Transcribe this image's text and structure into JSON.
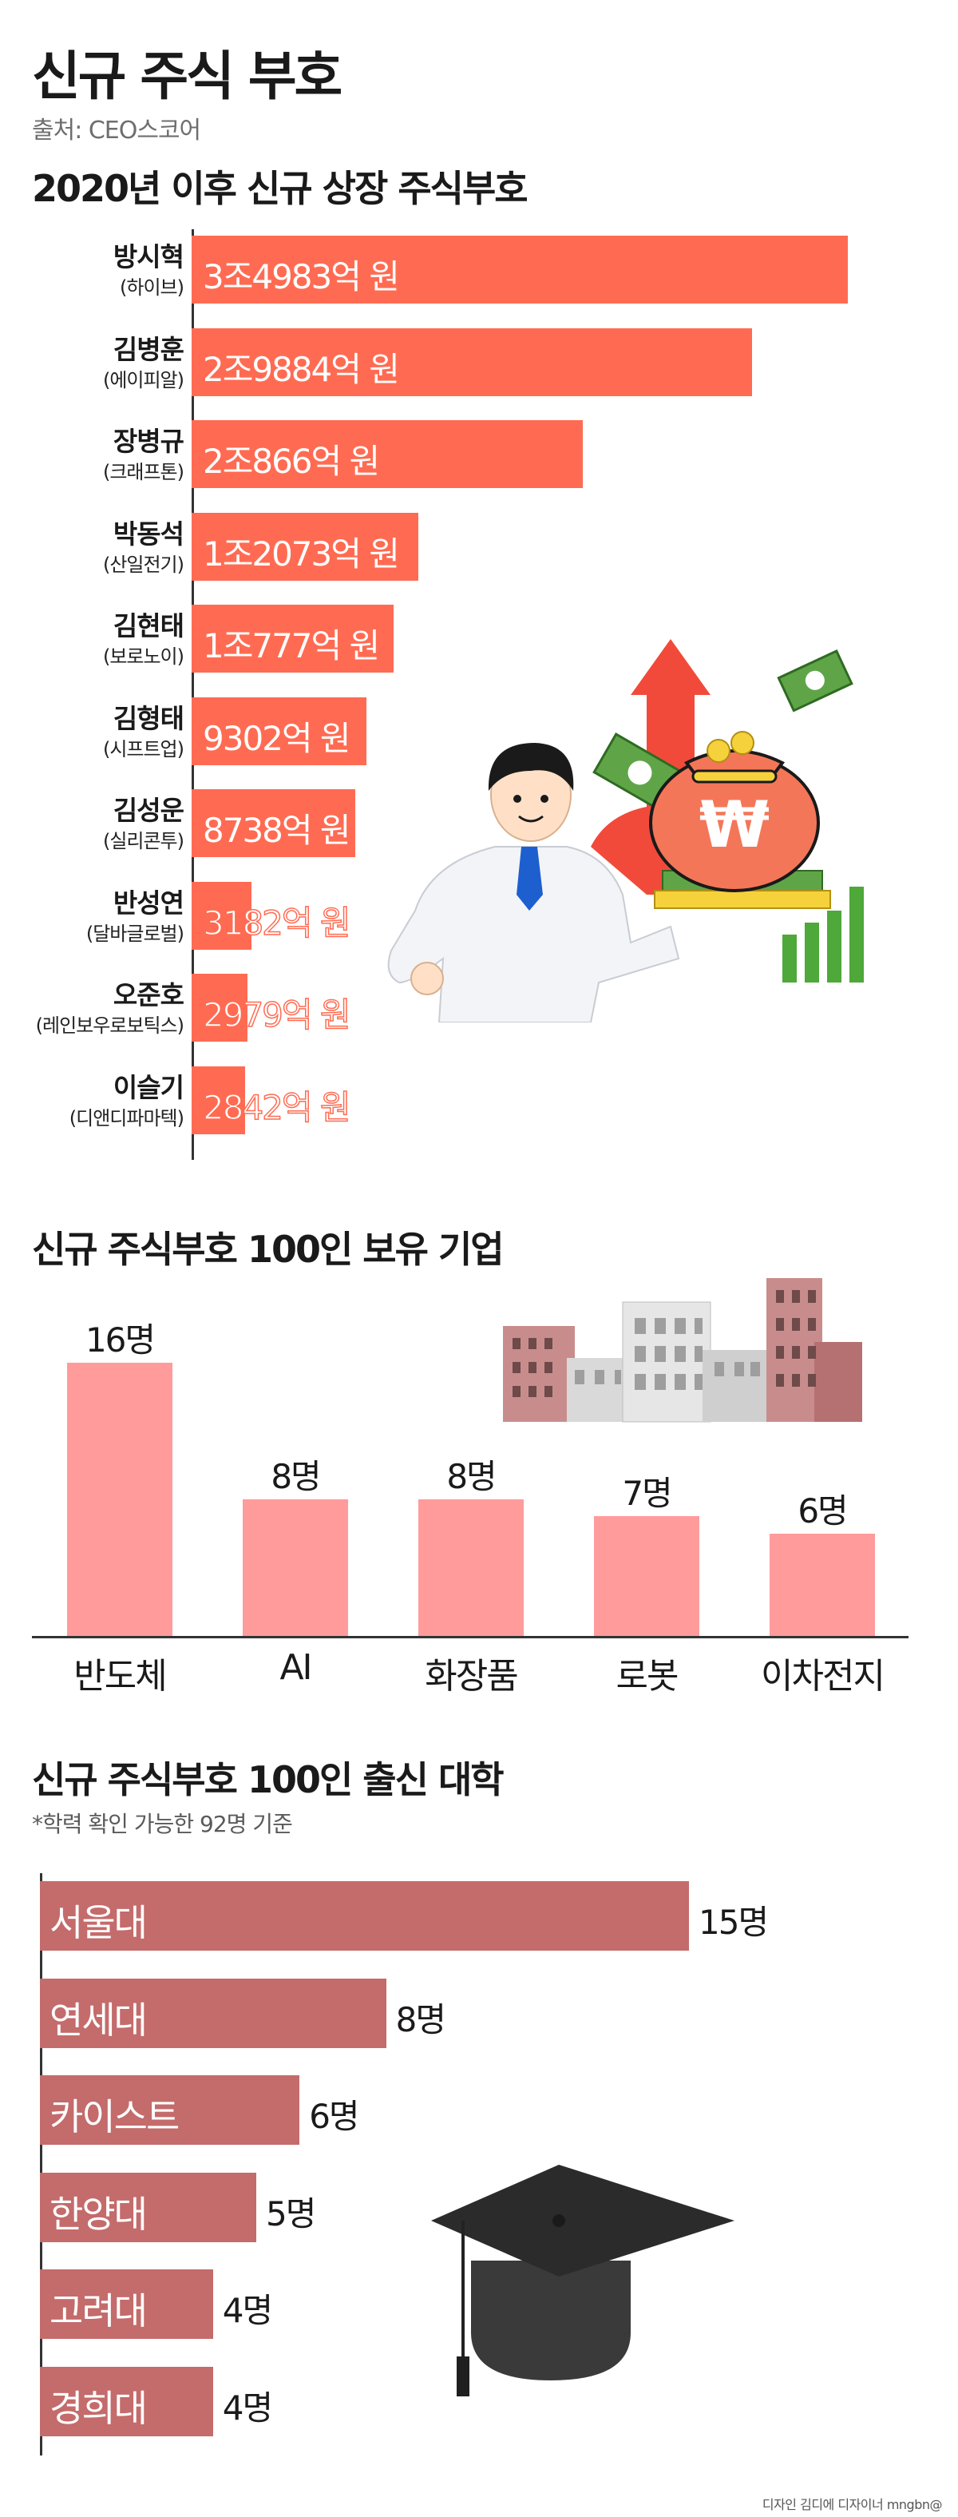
{
  "header": {
    "title": "신규 주식 부호",
    "source": "출처: CEO스코어"
  },
  "colors": {
    "bar1": "#ff6b52",
    "bar2": "#ff9b9b",
    "bar3": "#c46b6b",
    "axis": "#333333"
  },
  "chart_data": [
    {
      "type": "bar",
      "orientation": "horizontal",
      "title": "2020년 이후 신규 상장 주식부호",
      "categories": [
        "방시혁",
        "김병훈",
        "장병규",
        "박동석",
        "김현태",
        "김형태",
        "김성운",
        "반성연",
        "오준호",
        "이슬기"
      ],
      "companies": [
        "(하이브)",
        "(에이피알)",
        "(크래프톤)",
        "(산일전기)",
        "(보로노이)",
        "(시프트업)",
        "(실리콘투)",
        "(달바글로벌)",
        "(레인보우로보틱스)",
        "(디앤디파마텍)"
      ],
      "values": [
        34983,
        29884,
        20866,
        12073,
        10777,
        9302,
        8738,
        3182,
        2979,
        2842
      ],
      "value_labels": [
        "3조4983억 원",
        "2조9884억 원",
        "2조866억 원",
        "1조2073억 원",
        "1조777억 원",
        "9302억 원",
        "8738억 원",
        "3182억 원",
        "2979억 원",
        "2842억 원"
      ],
      "unit": "억 원"
    },
    {
      "type": "bar",
      "orientation": "vertical",
      "title": "신규 주식부호 100인 보유 기업",
      "categories": [
        "반도체",
        "AI",
        "화장품",
        "로봇",
        "이차전지"
      ],
      "values": [
        16,
        8,
        8,
        7,
        6
      ],
      "value_labels": [
        "16명",
        "8명",
        "8명",
        "7명",
        "6명"
      ],
      "unit": "명"
    },
    {
      "type": "bar",
      "orientation": "horizontal",
      "title": "신규 주식부호 100인 출신 대학",
      "note": "*학력 확인 가능한 92명 기준",
      "categories": [
        "서울대",
        "연세대",
        "카이스트",
        "한양대",
        "고려대",
        "경희대"
      ],
      "values": [
        15,
        8,
        6,
        5,
        4,
        4
      ],
      "value_labels": [
        "15명",
        "8명",
        "6명",
        "5명",
        "4명",
        "4명"
      ],
      "unit": "명"
    }
  ],
  "icons": {
    "illustration_1": "businessman-money-bag-icon",
    "illustration_2": "city-buildings-icon",
    "illustration_3": "graduation-cap-icon"
  },
  "credit": "디자인 김디에 디자이너 mngbn@"
}
